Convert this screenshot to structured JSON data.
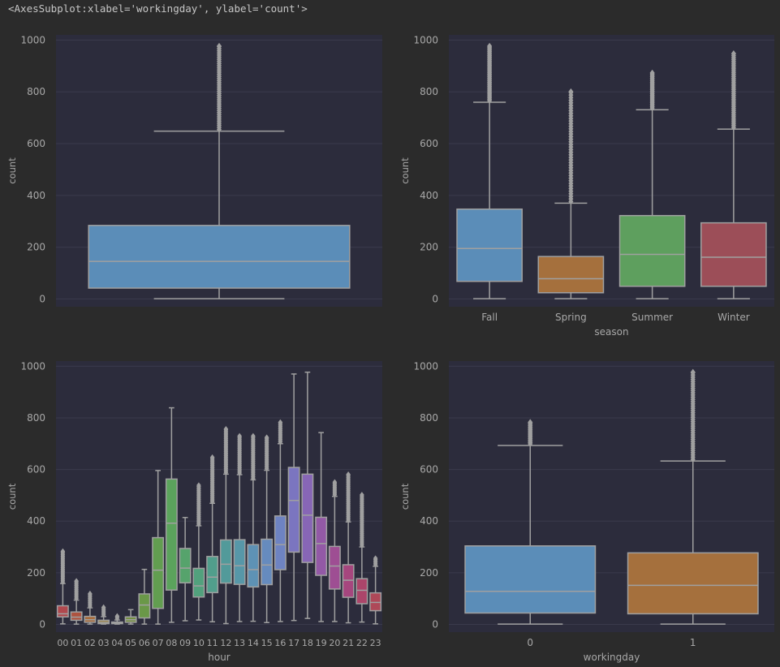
{
  "output_text": "<AxesSubplot:xlabel='workingday', ylabel='count'>",
  "colors": {
    "axes_bg": "#2c2c3c",
    "grid": "#3a3a4c",
    "tick_text": "#a8a8a8",
    "line": "#a0a0a0"
  },
  "chart_data": [
    {
      "type": "box",
      "title": "",
      "xlabel": "",
      "ylabel": "count",
      "ylim": [
        -30,
        1020
      ],
      "yticks": [
        0,
        200,
        400,
        600,
        800,
        1000
      ],
      "categories": [
        ""
      ],
      "colors": [
        "#5b8db8"
      ],
      "boxes": [
        {
          "whislo": 1,
          "q1": 42,
          "med": 145,
          "q3": 284,
          "whishi": 648,
          "fliers_min": 648,
          "fliers_max": 977
        }
      ]
    },
    {
      "type": "box",
      "title": "",
      "xlabel": "season",
      "ylabel": "count",
      "ylim": [
        -30,
        1020
      ],
      "yticks": [
        0,
        200,
        400,
        600,
        800,
        1000
      ],
      "categories": [
        "Fall",
        "Spring",
        "Summer",
        "Winter"
      ],
      "colors": [
        "#5b8db8",
        "#a5703d",
        "#5e9f5e",
        "#9c4e58"
      ],
      "boxes": [
        {
          "whislo": 1,
          "q1": 68,
          "med": 195,
          "q3": 347,
          "whishi": 760,
          "fliers_min": 760,
          "fliers_max": 977
        },
        {
          "whislo": 1,
          "q1": 24,
          "med": 78,
          "q3": 164,
          "whishi": 370,
          "fliers_min": 370,
          "fliers_max": 801
        },
        {
          "whislo": 1,
          "q1": 49,
          "med": 172,
          "q3": 322,
          "whishi": 731,
          "fliers_min": 731,
          "fliers_max": 873
        },
        {
          "whislo": 1,
          "q1": 49,
          "med": 161,
          "q3": 294,
          "whishi": 656,
          "fliers_min": 656,
          "fliers_max": 948
        }
      ]
    },
    {
      "type": "box",
      "title": "",
      "xlabel": "hour",
      "ylabel": "count",
      "ylim": [
        -30,
        1020
      ],
      "yticks": [
        0,
        200,
        400,
        600,
        800,
        1000
      ],
      "categories": [
        "00",
        "01",
        "02",
        "03",
        "04",
        "05",
        "06",
        "07",
        "08",
        "09",
        "10",
        "11",
        "12",
        "13",
        "14",
        "15",
        "16",
        "17",
        "18",
        "19",
        "20",
        "21",
        "22",
        "23"
      ],
      "colors": [
        "#b0484e",
        "#ae533f",
        "#a86a3a",
        "#9b7f3d",
        "#87853e",
        "#748f42",
        "#6a9848",
        "#629e50",
        "#5ba35c",
        "#56a36c",
        "#52a17d",
        "#519e8c",
        "#529a9a",
        "#5797a8",
        "#5e92b5",
        "#668bbe",
        "#6e83c2",
        "#7b75c0",
        "#8766b6",
        "#9359a6",
        "#9e4e93",
        "#a6467e",
        "#ab456a",
        "#ae4858"
      ],
      "boxes": [
        {
          "whislo": 2,
          "q1": 29,
          "med": 41,
          "q3": 72,
          "whishi": 158,
          "fliers_min": 158,
          "fliers_max": 283
        },
        {
          "whislo": 1,
          "q1": 16,
          "med": 28,
          "q3": 48,
          "whishi": 94,
          "fliers_min": 94,
          "fliers_max": 168
        },
        {
          "whislo": 1,
          "q1": 8,
          "med": 18,
          "q3": 31,
          "whishi": 64,
          "fliers_min": 64,
          "fliers_max": 119
        },
        {
          "whislo": 1,
          "q1": 3,
          "med": 8,
          "q3": 16,
          "whishi": 30,
          "fliers_min": 30,
          "fliers_max": 66
        },
        {
          "whislo": 1,
          "q1": 3,
          "med": 5,
          "q3": 9,
          "whishi": 17,
          "fliers_min": 17,
          "fliers_max": 32
        },
        {
          "whislo": 1,
          "q1": 8,
          "med": 18,
          "q3": 29,
          "whishi": 57,
          "fliers_min": 57,
          "fliers_max": 57
        },
        {
          "whislo": 1,
          "q1": 25,
          "med": 75,
          "q3": 118,
          "whishi": 213,
          "fliers_min": 213,
          "fliers_max": 213
        },
        {
          "whislo": 1,
          "q1": 62,
          "med": 210,
          "q3": 336,
          "whishi": 596,
          "fliers_min": 596,
          "fliers_max": 596
        },
        {
          "whislo": 8,
          "q1": 133,
          "med": 392,
          "q3": 563,
          "whishi": 839,
          "fliers_min": 839,
          "fliers_max": 839
        },
        {
          "whislo": 14,
          "q1": 161,
          "med": 218,
          "q3": 294,
          "whishi": 414,
          "fliers_min": 414,
          "fliers_max": 414
        },
        {
          "whislo": 17,
          "q1": 106,
          "med": 149,
          "q3": 217,
          "whishi": 382,
          "fliers_min": 382,
          "fliers_max": 539
        },
        {
          "whislo": 10,
          "q1": 123,
          "med": 183,
          "q3": 263,
          "whishi": 469,
          "fliers_min": 469,
          "fliers_max": 647
        },
        {
          "whislo": 3,
          "q1": 160,
          "med": 233,
          "q3": 327,
          "whishi": 582,
          "fliers_min": 582,
          "fliers_max": 757
        },
        {
          "whislo": 11,
          "q1": 155,
          "med": 227,
          "q3": 328,
          "whishi": 580,
          "fliers_min": 580,
          "fliers_max": 730
        },
        {
          "whislo": 12,
          "q1": 145,
          "med": 212,
          "q3": 309,
          "whishi": 560,
          "fliers_min": 560,
          "fliers_max": 730
        },
        {
          "whislo": 7,
          "q1": 154,
          "med": 230,
          "q3": 330,
          "whishi": 597,
          "fliers_min": 597,
          "fliers_max": 724
        },
        {
          "whislo": 11,
          "q1": 212,
          "med": 309,
          "q3": 420,
          "whishi": 700,
          "fliers_min": 700,
          "fliers_max": 783
        },
        {
          "whislo": 15,
          "q1": 280,
          "med": 480,
          "q3": 608,
          "whishi": 970,
          "fliers_min": 970,
          "fliers_max": 970
        },
        {
          "whislo": 23,
          "q1": 240,
          "med": 423,
          "q3": 582,
          "whishi": 977,
          "fliers_min": 977,
          "fliers_max": 977
        },
        {
          "whislo": 11,
          "q1": 190,
          "med": 313,
          "q3": 415,
          "whishi": 743,
          "fliers_min": 743,
          "fliers_max": 743
        },
        {
          "whislo": 11,
          "q1": 137,
          "med": 226,
          "q3": 302,
          "whishi": 496,
          "fliers_min": 496,
          "fliers_max": 551
        },
        {
          "whislo": 6,
          "q1": 105,
          "med": 171,
          "q3": 231,
          "whishi": 397,
          "fliers_min": 397,
          "fliers_max": 581
        },
        {
          "whislo": 9,
          "q1": 80,
          "med": 132,
          "q3": 177,
          "whishi": 300,
          "fliers_min": 300,
          "fliers_max": 502
        },
        {
          "whislo": 2,
          "q1": 53,
          "med": 85,
          "q3": 122,
          "whishi": 225,
          "fliers_min": 225,
          "fliers_max": 256
        }
      ]
    },
    {
      "type": "box",
      "title": "",
      "xlabel": "workingday",
      "ylabel": "count",
      "ylim": [
        -30,
        1020
      ],
      "yticks": [
        0,
        200,
        400,
        600,
        800,
        1000
      ],
      "categories": [
        "0",
        "1"
      ],
      "colors": [
        "#5b8db8",
        "#a5703d"
      ],
      "boxes": [
        {
          "whislo": 1,
          "q1": 44,
          "med": 128,
          "q3": 304,
          "whishi": 693,
          "fliers_min": 693,
          "fliers_max": 783
        },
        {
          "whislo": 1,
          "q1": 41,
          "med": 151,
          "q3": 277,
          "whishi": 633,
          "fliers_min": 633,
          "fliers_max": 977
        }
      ]
    }
  ]
}
